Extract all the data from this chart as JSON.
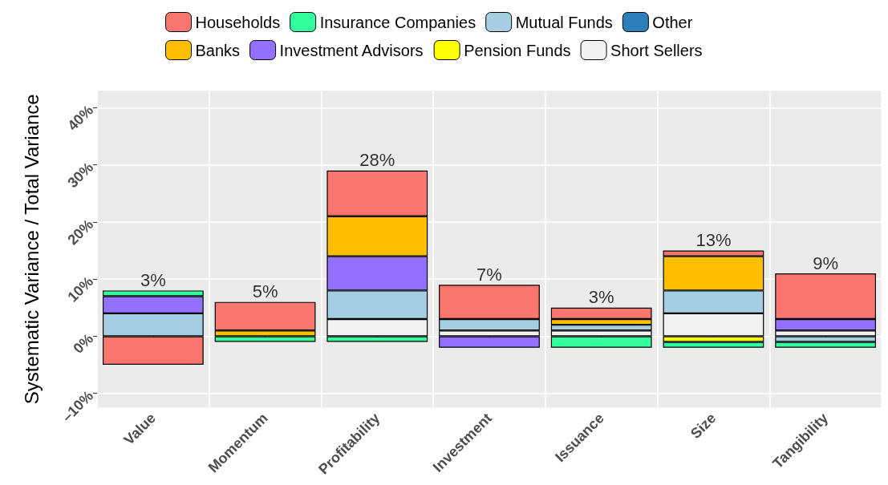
{
  "chart_data": {
    "type": "bar",
    "stacked": true,
    "ylabel": "Systematic Variance / Total Variance",
    "categories": [
      "Value",
      "Momentum",
      "Profitability",
      "Investment",
      "Issuance",
      "Size",
      "Tangibility"
    ],
    "series": [
      {
        "name": "Short Sellers",
        "color": "#f2f2f2",
        "values": [
          null,
          null,
          3,
          1,
          1,
          4,
          1
        ]
      },
      {
        "name": "Other",
        "color": "#2c7fb8",
        "values": [
          null,
          null,
          null,
          null,
          null,
          null,
          null
        ]
      },
      {
        "name": "Pension Funds",
        "color": "#ffff00",
        "values": [
          null,
          null,
          null,
          null,
          null,
          -1,
          null
        ]
      },
      {
        "name": "Mutual Funds",
        "color": "#a6cee3",
        "values": [
          4,
          null,
          5,
          2,
          1,
          4,
          -1
        ]
      },
      {
        "name": "Investment Advisors",
        "color": "#9370ff",
        "values": [
          3,
          null,
          6,
          -2,
          null,
          null,
          2
        ]
      },
      {
        "name": "Insurance Companies",
        "color": "#33ffa0",
        "values": [
          1,
          -1,
          -1,
          null,
          -2,
          -1,
          -1
        ]
      },
      {
        "name": "Banks",
        "color": "#ffbf00",
        "values": [
          null,
          1,
          7,
          null,
          1,
          6,
          null
        ]
      },
      {
        "name": "Households",
        "color": "#f8766d",
        "values": [
          -5,
          5,
          8,
          6,
          2,
          1,
          8
        ]
      }
    ],
    "totals": [
      "3%",
      "5%",
      "28%",
      "7%",
      "3%",
      "13%",
      "9%"
    ],
    "ylim": [
      -12.5,
      43
    ],
    "yticks": [
      {
        "value": -10,
        "label": "–10%"
      },
      {
        "value": 0,
        "label": "0%"
      },
      {
        "value": 10,
        "label": "10%"
      },
      {
        "value": 20,
        "label": "20%"
      },
      {
        "value": 30,
        "label": "30%"
      },
      {
        "value": 40,
        "label": "40%"
      }
    ],
    "grid": true,
    "legend": "top"
  }
}
